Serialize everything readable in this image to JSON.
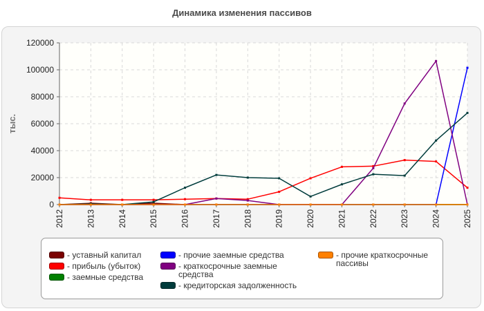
{
  "title": "Динамика изменения пассивов",
  "chart_data": {
    "type": "line",
    "ylabel": "тыс.",
    "xlabel": "",
    "ylim": [
      0,
      120000
    ],
    "yticks": [
      "0",
      "20000",
      "40000",
      "60000",
      "80000",
      "100000",
      "120000"
    ],
    "x": [
      "2012",
      "2013",
      "2014",
      "2015",
      "2016",
      "2017",
      "2018",
      "2019",
      "2020",
      "2021",
      "2022",
      "2023",
      "2024",
      "2025"
    ],
    "grid": true,
    "legend_position": "bottom",
    "series": [
      {
        "name": "- уставный капитал",
        "color": "#7a0000",
        "values": [
          0,
          1000,
          0,
          1000,
          0,
          0,
          0,
          0,
          0,
          0,
          0,
          0,
          0,
          0
        ]
      },
      {
        "name": "- прибыль (убыток)",
        "color": "#ff0000",
        "values": [
          5000,
          3500,
          3500,
          3500,
          4000,
          4500,
          4000,
          9500,
          19500,
          28000,
          28500,
          33000,
          32000,
          12500
        ]
      },
      {
        "name": "- заемные средства",
        "color": "#008000",
        "values": [
          0,
          0,
          0,
          0,
          0,
          0,
          0,
          0,
          0,
          0,
          0,
          0,
          0,
          0
        ]
      },
      {
        "name": "- прочие заемные средства",
        "color": "#0000ff",
        "values": [
          0,
          0,
          0,
          0,
          0,
          0,
          0,
          0,
          0,
          0,
          0,
          0,
          0,
          101500
        ]
      },
      {
        "name": "- краткосрочные заемные средства",
        "color": "#800080",
        "values": [
          0,
          0,
          0,
          0,
          0,
          4500,
          3000,
          0,
          0,
          0,
          27000,
          75000,
          106500,
          0
        ]
      },
      {
        "name": "- кредиторская задолженность",
        "color": "#003c3c",
        "values": [
          0,
          500,
          0,
          2000,
          12500,
          22000,
          20000,
          19500,
          6000,
          15000,
          22500,
          21500,
          47500,
          68000
        ]
      },
      {
        "name": "- прочие краткосрочные пассивы",
        "color": "#ff8000",
        "values": [
          0,
          0,
          0,
          0,
          0,
          0,
          0,
          0,
          0,
          0,
          0,
          0,
          0,
          0
        ]
      }
    ]
  },
  "legend": {
    "items": [
      {
        "swatch": "#7a0000",
        "lines": [
          "- уставный капитал"
        ]
      },
      {
        "swatch": "#ff0000",
        "lines": [
          "- прибыль (убыток)"
        ]
      },
      {
        "swatch": "#008000",
        "lines": [
          "- заемные средства"
        ]
      },
      {
        "swatch": "#0000ff",
        "lines": [
          "- прочие заемные средства"
        ]
      },
      {
        "swatch": "#800080",
        "lines": [
          "- краткосрочные заемные",
          "средства"
        ]
      },
      {
        "swatch": "#003c3c",
        "lines": [
          "- кредиторская задолженность"
        ]
      },
      {
        "swatch": "#ff8000",
        "lines": [
          "- прочие краткосрочные",
          "пассивы"
        ]
      }
    ]
  }
}
